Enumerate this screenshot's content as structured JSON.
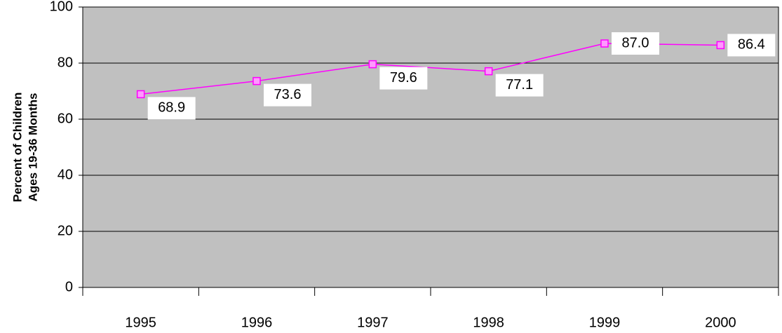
{
  "chart_data": {
    "type": "line",
    "ylabel": [
      "Percent of Children",
      "Ages 19-36 Months"
    ],
    "categories": [
      "1995",
      "1996",
      "1997",
      "1998",
      "1999",
      "2000"
    ],
    "values": [
      68.9,
      73.6,
      79.6,
      77.1,
      87.0,
      86.4
    ],
    "value_labels": [
      "68.9",
      "73.6",
      "79.6",
      "77.1",
      "87.0",
      "86.4"
    ],
    "color": "#ff00ff",
    "ylim": [
      0,
      100
    ],
    "yticks": [
      0,
      20,
      40,
      60,
      80,
      100
    ],
    "grid": true
  }
}
